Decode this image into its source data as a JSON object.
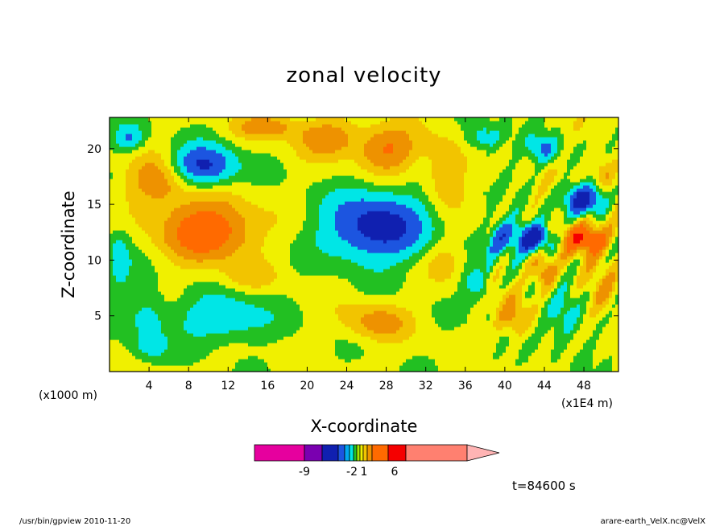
{
  "chart_data": {
    "type": "heatmap",
    "title": "zonal velocity",
    "xlabel": "X-coordinate",
    "ylabel": "Z-coordinate",
    "xlim": [
      0,
      51.5
    ],
    "ylim": [
      0,
      22.8
    ],
    "x_ticks": [
      4,
      8,
      12,
      16,
      20,
      24,
      28,
      32,
      36,
      40,
      44,
      48
    ],
    "y_ticks": [
      5,
      10,
      15,
      20
    ],
    "x_unit_left": "(x1000 m)",
    "x_unit_right": "(x1E4 m)",
    "time_label": "t=84600 s",
    "colorbar": {
      "tick_labels": [
        "-9",
        "-2",
        "1",
        "6"
      ],
      "colors": [
        "#e6009e",
        "#7a00b0",
        "#1020b0",
        "#1c55e0",
        "#00a8f0",
        "#00e6e6",
        "#22c022",
        "#a6e600",
        "#f0f000",
        "#f2c400",
        "#ee9200",
        "#ff6a00",
        "#f50000",
        "#ff8070",
        "#ffb4b4"
      ]
    },
    "value_colors": [
      {
        "min": -99,
        "color": "#1020b0"
      },
      {
        "min": -6,
        "color": "#1c55e0"
      },
      {
        "min": -3.5,
        "color": "#00e6e6"
      },
      {
        "min": -1.5,
        "color": "#22c022"
      },
      {
        "min": 0,
        "color": "#f0f000"
      },
      {
        "min": 1.5,
        "color": "#f2c400"
      },
      {
        "min": 3,
        "color": "#ee9200"
      },
      {
        "min": 5,
        "color": "#ff6a00"
      },
      {
        "min": 8,
        "color": "#f50000"
      }
    ],
    "features": [
      {
        "x": 10,
        "z": 12.7,
        "sx": 4.5,
        "sz": 2.6,
        "a": 7
      },
      {
        "x": 5,
        "z": 17,
        "sx": 3,
        "sz": 2.3,
        "a": 4
      },
      {
        "x": 9.5,
        "z": 18.5,
        "sx": 3.2,
        "sz": 1.8,
        "a": -7
      },
      {
        "x": 11.5,
        "z": 4.8,
        "sx": 4.5,
        "sz": 2,
        "a": -4
      },
      {
        "x": 4,
        "z": 5,
        "sx": 2,
        "sz": 2.5,
        "a": -2.5
      },
      {
        "x": 27,
        "z": 13,
        "sx": 5,
        "sz": 3,
        "a": -8
      },
      {
        "x": 27,
        "z": 4.5,
        "sx": 3.2,
        "sz": 1.6,
        "a": 3.5
      },
      {
        "x": 28,
        "z": 20,
        "sx": 3,
        "sz": 2,
        "a": 5
      },
      {
        "x": 34,
        "z": 18,
        "sx": 2,
        "sz": 3,
        "a": 3
      },
      {
        "x": 22,
        "z": 21,
        "sx": 3,
        "sz": 1.6,
        "a": 4
      },
      {
        "x": 40,
        "z": 12,
        "sx": 1.8,
        "sz": 1.6,
        "a": -5
      },
      {
        "x": 43,
        "z": 12,
        "sx": 1.6,
        "sz": 1.3,
        "a": -9
      },
      {
        "x": 48,
        "z": 12,
        "sx": 2.3,
        "sz": 1.4,
        "a": 8
      },
      {
        "x": 48,
        "z": 15.5,
        "sx": 2,
        "sz": 1.3,
        "a": -8
      },
      {
        "x": 44,
        "z": 9,
        "sx": 1.2,
        "sz": 1.6,
        "a": 5
      },
      {
        "x": 46,
        "z": 5,
        "sx": 1.8,
        "sz": 2,
        "a": -3.5
      },
      {
        "x": 41,
        "z": 5,
        "sx": 1.6,
        "sz": 1.8,
        "a": 3.5
      },
      {
        "x": 50,
        "z": 7,
        "sx": 1.5,
        "sz": 2,
        "a": 3
      },
      {
        "x": 37,
        "z": 8,
        "sx": 1.5,
        "sz": 1.5,
        "a": -3
      },
      {
        "x": 1,
        "z": 10,
        "sx": 1.2,
        "sz": 3,
        "a": -3
      },
      {
        "x": 2,
        "z": 21,
        "sx": 1.5,
        "sz": 1.2,
        "a": -4
      },
      {
        "x": 16,
        "z": 22,
        "sx": 3,
        "sz": 1,
        "a": 4
      },
      {
        "x": 38,
        "z": 21,
        "sx": 2,
        "sz": 1.3,
        "a": -3
      },
      {
        "x": 44,
        "z": 20,
        "sx": 1.5,
        "sz": 1.2,
        "a": -4
      },
      {
        "x": 50,
        "z": 18,
        "sx": 1.5,
        "sz": 1.5,
        "a": 3
      },
      {
        "x": 34,
        "z": 10,
        "sx": 2,
        "sz": 2,
        "a": 2
      },
      {
        "x": 4,
        "z": 2,
        "sx": 2,
        "sz": 1.2,
        "a": -2.2
      },
      {
        "x": 14,
        "z": 8.5,
        "sx": 3,
        "sz": 1.2,
        "a": 1.5
      }
    ]
  },
  "footer": {
    "left": "/usr/bin/gpview  2010-11-20",
    "right": "arare-earth_VelX.nc@VelX"
  }
}
